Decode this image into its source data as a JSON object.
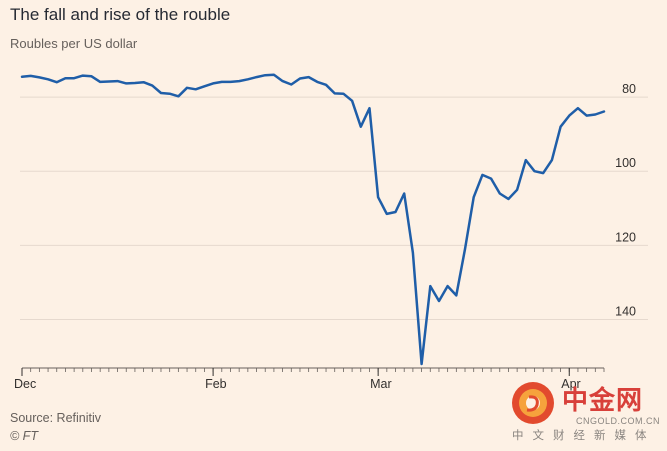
{
  "chart_data": {
    "type": "line",
    "title": "The fall and rise of the rouble",
    "subtitle": "Roubles per US dollar",
    "ylabel": "",
    "xlabel": "",
    "y_inverted": true,
    "ylim": [
      152,
      70
    ],
    "y_ticks": [
      80,
      100,
      120,
      140
    ],
    "x_ticks": [
      {
        "label": "Dec",
        "index": 0
      },
      {
        "label": "Feb",
        "index": 22
      },
      {
        "label": "Mar",
        "index": 41
      },
      {
        "label": "Apr",
        "index": 63
      }
    ],
    "grid": true,
    "series": [
      {
        "color": "#1f5ea8",
        "values": [
          74.5,
          74.3,
          74.7,
          75.2,
          76.0,
          74.9,
          74.9,
          74.2,
          74.4,
          75.9,
          75.8,
          75.7,
          76.3,
          76.2,
          76.0,
          76.9,
          78.9,
          79.1,
          79.8,
          77.5,
          77.9,
          77.1,
          76.3,
          75.9,
          75.9,
          75.7,
          75.2,
          74.6,
          74.1,
          74.0,
          75.7,
          76.6,
          75.0,
          74.6,
          75.9,
          76.7,
          79.0,
          79.1,
          81.0,
          88.0,
          83.0,
          107.0,
          111.5,
          111.0,
          106.0,
          122.0,
          152.0,
          131.0,
          135.0,
          131.0,
          133.5,
          121.0,
          107.0,
          101.0,
          102.0,
          106.0,
          107.5,
          105.0,
          97.0,
          100.0,
          100.5,
          97.0,
          88.0,
          85.0,
          83.0,
          85.0,
          84.7,
          83.9
        ]
      }
    ]
  },
  "footer": {
    "source": "Source: Refinitiv",
    "credit": "© FT"
  },
  "watermark": {
    "brand": "中金网",
    "site": "CNGOLD.COM.CN",
    "tagline": "中文财经新媒体",
    "logo_color": "#e24a2e"
  }
}
